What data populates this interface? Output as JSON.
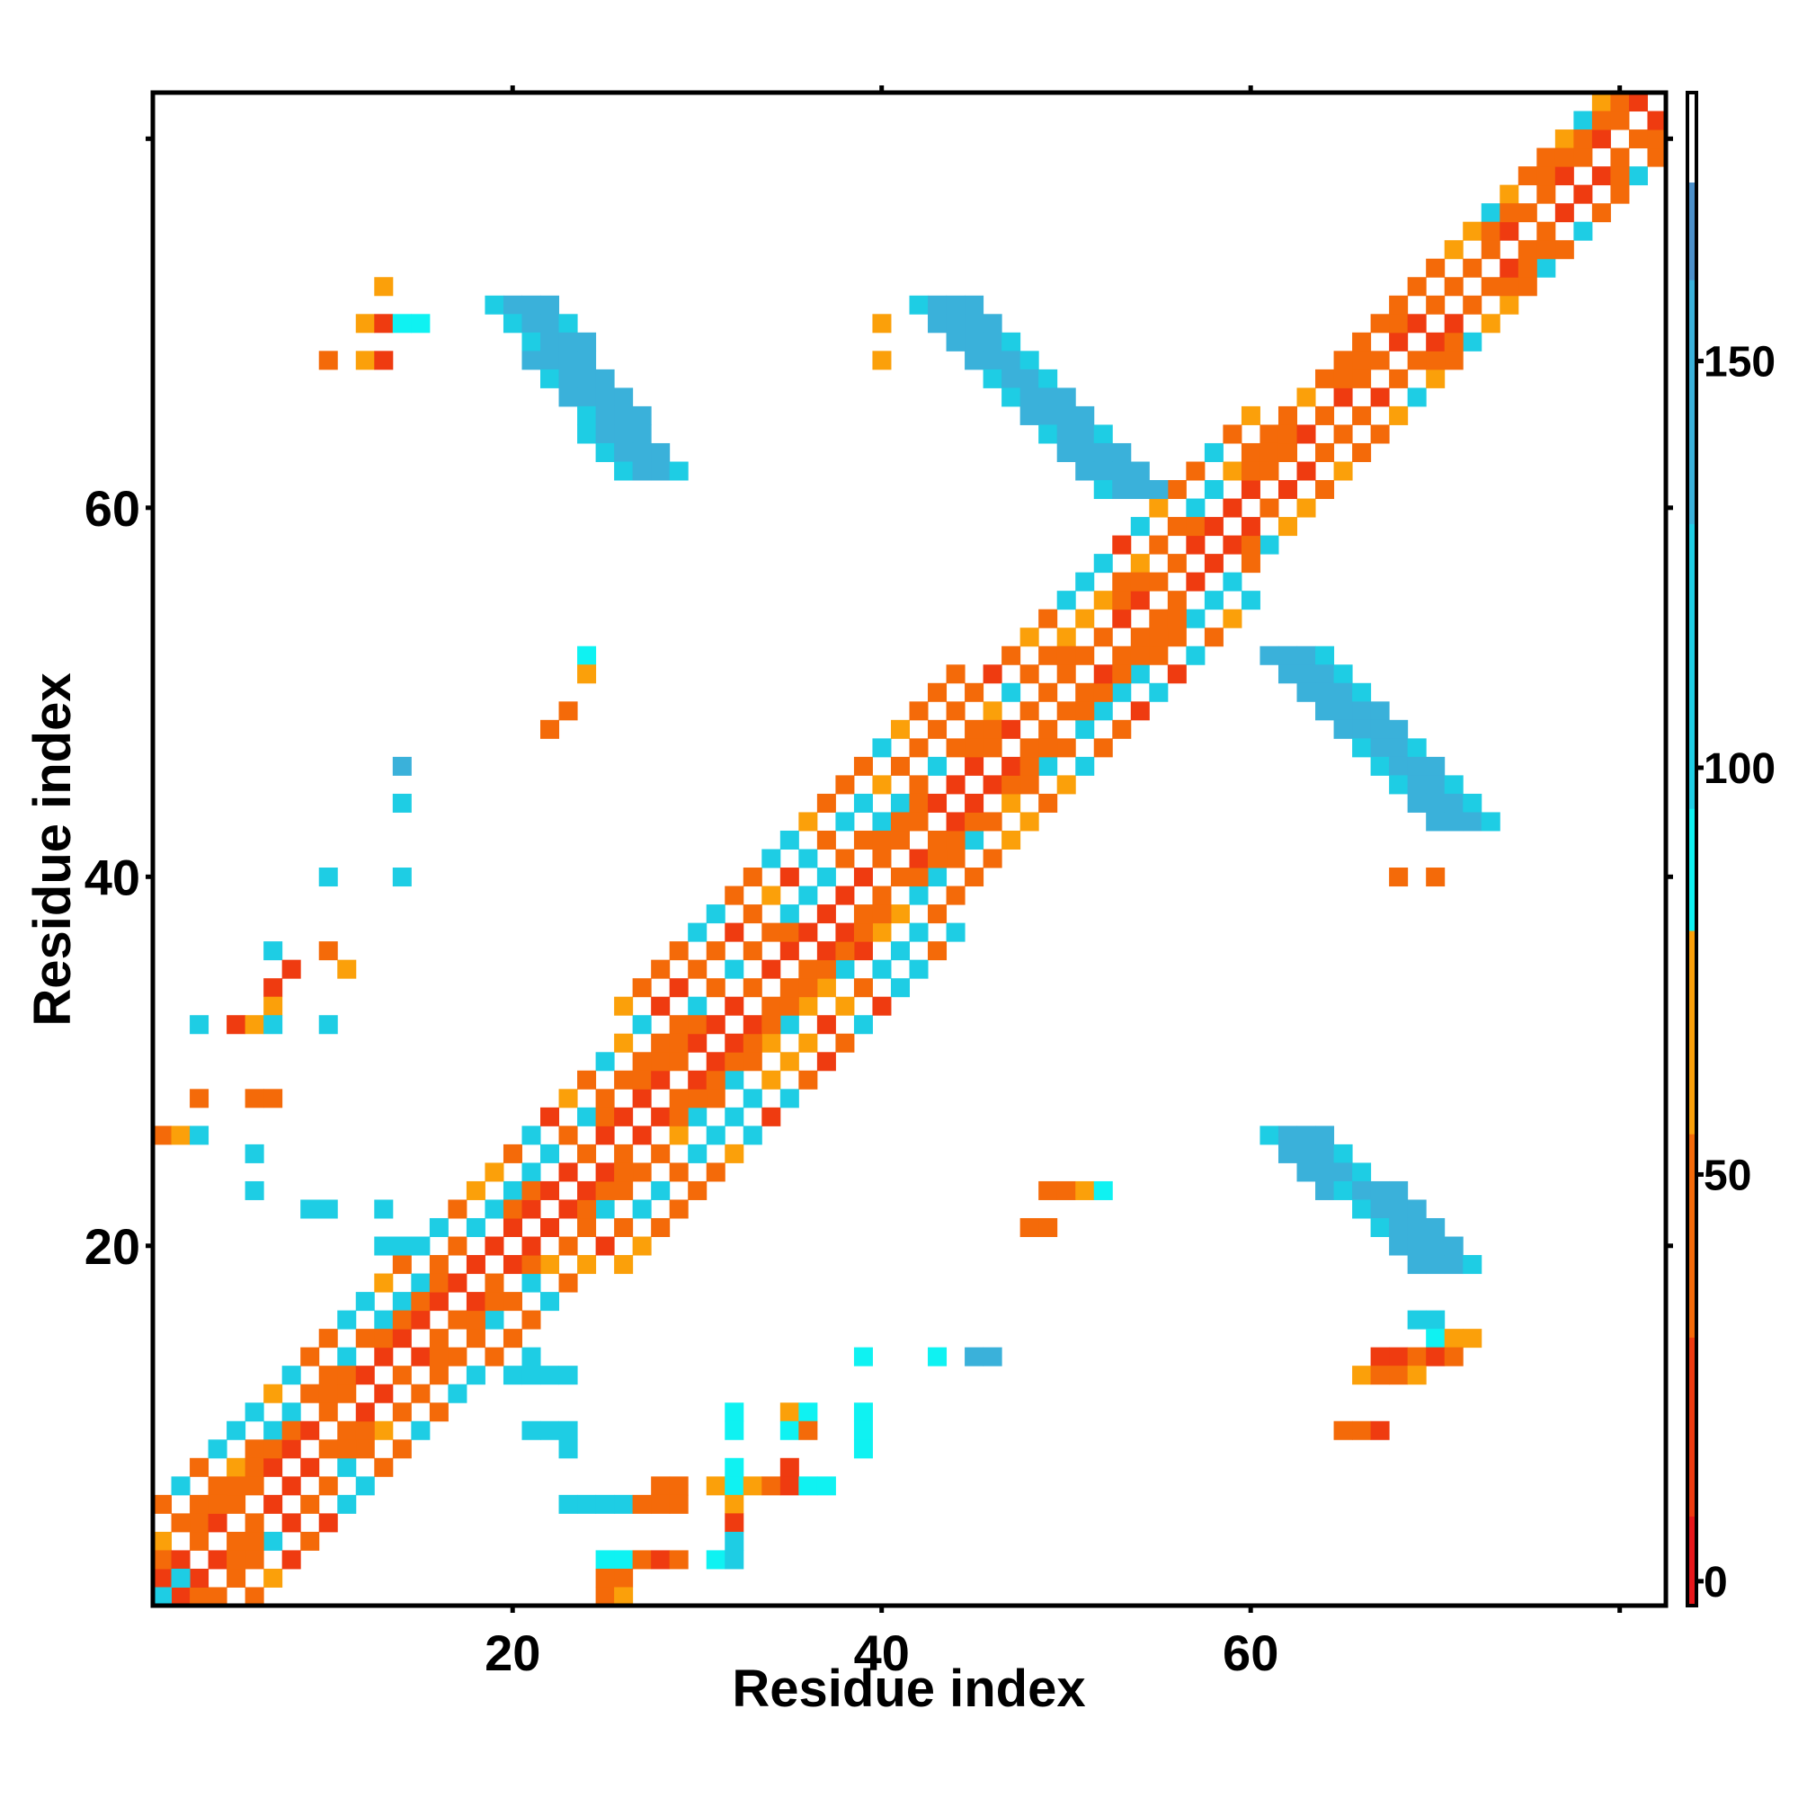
{
  "chart_data": {
    "type": "heatmap",
    "title": "",
    "xlabel": "Residue index",
    "ylabel": "Residue index",
    "xlim": [
      1,
      82
    ],
    "ylim": [
      1,
      82
    ],
    "x_ticks": [
      20,
      40,
      60
    ],
    "y_ticks": [
      20,
      40,
      60
    ],
    "x_tick_labels": [
      "20",
      "40",
      "60"
    ],
    "y_tick_labels": [
      "20",
      "40",
      "60"
    ],
    "grid": false,
    "legend": "right",
    "colorbar": {
      "range": [
        -3,
        183
      ],
      "ticks": [
        0,
        50,
        100,
        150
      ],
      "tick_labels": [
        "0",
        "50",
        "100",
        "150"
      ],
      "stops": [
        {
          "from": -3,
          "to": 8,
          "color": "#e8171b"
        },
        {
          "from": 8,
          "to": 30,
          "color": "#ef3b10"
        },
        {
          "from": 30,
          "to": 55,
          "color": "#f46a09"
        },
        {
          "from": 55,
          "to": 80,
          "color": "#fba00a"
        },
        {
          "from": 80,
          "to": 95,
          "color": "#0ff2f2"
        },
        {
          "from": 95,
          "to": 130,
          "color": "#1ecde4"
        },
        {
          "from": 130,
          "to": 160,
          "color": "#3ab1da"
        },
        {
          "from": 160,
          "to": 172,
          "color": "#4b8fc9"
        },
        {
          "from": 172,
          "to": 183,
          "color": "#ffffff"
        }
      ]
    },
    "regions": [
      {
        "name": "diagonal-band",
        "x_range": [
          1,
          82
        ],
        "y_offset_range": [
          -7,
          7
        ],
        "value_range": [
          20,
          120
        ]
      },
      {
        "name": "near-diagonal",
        "x_range": [
          1,
          82
        ],
        "y_offset_range": [
          -1,
          1
        ],
        "value_range": [
          10,
          40
        ]
      },
      {
        "name": "beta-sheet-1",
        "x_center": [
          20,
          27
        ],
        "y_center": [
          71,
          62
        ],
        "value": 155
      },
      {
        "name": "beta-sheet-2",
        "x_center": [
          43,
          53
        ],
        "y_center": [
          71,
          61
        ],
        "value": 155
      },
      {
        "name": "beta-sheet-3",
        "x_center": [
          62,
          71
        ],
        "y_center": [
          52,
          43
        ],
        "value": 155
      },
      {
        "name": "beta-sheet-4",
        "x_center": [
          62,
          70
        ],
        "y_center": [
          26,
          19
        ],
        "value": 155
      }
    ],
    "cells": [
      {
        "x": 1,
        "y": 1,
        "v": 100
      },
      {
        "x": 2,
        "y": 2,
        "v": 100
      },
      {
        "x": 13,
        "y": 72,
        "v": 60
      },
      {
        "x": 12,
        "y": 70,
        "v": 60
      },
      {
        "x": 13,
        "y": 70,
        "v": 20
      },
      {
        "x": 10,
        "y": 68,
        "v": 50
      },
      {
        "x": 12,
        "y": 68,
        "v": 60
      },
      {
        "x": 13,
        "y": 68,
        "v": 20
      },
      {
        "x": 14,
        "y": 70,
        "v": 85
      },
      {
        "x": 15,
        "y": 70,
        "v": 90
      },
      {
        "x": 40,
        "y": 70,
        "v": 70
      },
      {
        "x": 40,
        "y": 68,
        "v": 55
      },
      {
        "x": 24,
        "y": 52,
        "v": 90
      },
      {
        "x": 24,
        "y": 51,
        "v": 70
      },
      {
        "x": 23,
        "y": 49,
        "v": 50
      },
      {
        "x": 22,
        "y": 48,
        "v": 50
      },
      {
        "x": 14,
        "y": 46,
        "v": 155
      },
      {
        "x": 14,
        "y": 44,
        "v": 95
      },
      {
        "x": 10,
        "y": 40,
        "v": 95
      },
      {
        "x": 14,
        "y": 40,
        "v": 95
      },
      {
        "x": 7,
        "y": 36,
        "v": 95
      },
      {
        "x": 8,
        "y": 35,
        "v": 20
      },
      {
        "x": 7,
        "y": 34,
        "v": 20
      },
      {
        "x": 7,
        "y": 33,
        "v": 70
      },
      {
        "x": 3,
        "y": 32,
        "v": 95
      },
      {
        "x": 5,
        "y": 32,
        "v": 20
      },
      {
        "x": 6,
        "y": 32,
        "v": 55
      },
      {
        "x": 7,
        "y": 32,
        "v": 95
      },
      {
        "x": 10,
        "y": 36,
        "v": 50
      },
      {
        "x": 11,
        "y": 35,
        "v": 70
      },
      {
        "x": 10,
        "y": 32,
        "v": 95
      },
      {
        "x": 3,
        "y": 28,
        "v": 50
      },
      {
        "x": 6,
        "y": 28,
        "v": 50
      },
      {
        "x": 7,
        "y": 28,
        "v": 50
      },
      {
        "x": 1,
        "y": 26,
        "v": 50
      },
      {
        "x": 2,
        "y": 26,
        "v": 70
      },
      {
        "x": 3,
        "y": 26,
        "v": 95
      },
      {
        "x": 6,
        "y": 25,
        "v": 95
      },
      {
        "x": 6,
        "y": 23,
        "v": 95
      },
      {
        "x": 9,
        "y": 22,
        "v": 95
      },
      {
        "x": 10,
        "y": 22,
        "v": 95
      },
      {
        "x": 13,
        "y": 22,
        "v": 95
      },
      {
        "x": 13,
        "y": 20,
        "v": 95
      },
      {
        "x": 14,
        "y": 20,
        "v": 100
      },
      {
        "x": 49,
        "y": 23,
        "v": 50
      },
      {
        "x": 50,
        "y": 23,
        "v": 50
      },
      {
        "x": 51,
        "y": 23,
        "v": 70
      },
      {
        "x": 52,
        "y": 23,
        "v": 90
      },
      {
        "x": 48,
        "y": 21,
        "v": 50
      },
      {
        "x": 49,
        "y": 21,
        "v": 50
      },
      {
        "x": 68,
        "y": 40,
        "v": 50
      },
      {
        "x": 70,
        "y": 40,
        "v": 50
      },
      {
        "x": 69,
        "y": 16,
        "v": 95
      },
      {
        "x": 70,
        "y": 16,
        "v": 95
      },
      {
        "x": 70,
        "y": 15,
        "v": 90
      },
      {
        "x": 71,
        "y": 15,
        "v": 70
      },
      {
        "x": 72,
        "y": 15,
        "v": 60
      },
      {
        "x": 67,
        "y": 14,
        "v": 20
      },
      {
        "x": 68,
        "y": 14,
        "v": 20
      },
      {
        "x": 69,
        "y": 14,
        "v": 50
      },
      {
        "x": 70,
        "y": 14,
        "v": 20
      },
      {
        "x": 71,
        "y": 14,
        "v": 50
      },
      {
        "x": 66,
        "y": 13,
        "v": 60
      },
      {
        "x": 67,
        "y": 13,
        "v": 50
      },
      {
        "x": 68,
        "y": 13,
        "v": 50
      },
      {
        "x": 69,
        "y": 13,
        "v": 70
      },
      {
        "x": 65,
        "y": 10,
        "v": 50
      },
      {
        "x": 66,
        "y": 10,
        "v": 50
      },
      {
        "x": 67,
        "y": 10,
        "v": 20
      },
      {
        "x": 21,
        "y": 14,
        "v": 95
      },
      {
        "x": 20,
        "y": 13,
        "v": 95
      },
      {
        "x": 21,
        "y": 13,
        "v": 95
      },
      {
        "x": 22,
        "y": 13,
        "v": 95
      },
      {
        "x": 23,
        "y": 13,
        "v": 95
      },
      {
        "x": 21,
        "y": 10,
        "v": 95
      },
      {
        "x": 22,
        "y": 10,
        "v": 95
      },
      {
        "x": 23,
        "y": 10,
        "v": 95
      },
      {
        "x": 23,
        "y": 9,
        "v": 95
      },
      {
        "x": 39,
        "y": 14,
        "v": 90
      },
      {
        "x": 43,
        "y": 14,
        "v": 90
      },
      {
        "x": 45,
        "y": 14,
        "v": 155
      },
      {
        "x": 46,
        "y": 14,
        "v": 155
      },
      {
        "x": 32,
        "y": 11,
        "v": 90
      },
      {
        "x": 32,
        "y": 10,
        "v": 90
      },
      {
        "x": 35,
        "y": 11,
        "v": 70
      },
      {
        "x": 36,
        "y": 11,
        "v": 90
      },
      {
        "x": 35,
        "y": 10,
        "v": 90
      },
      {
        "x": 36,
        "y": 10,
        "v": 50
      },
      {
        "x": 39,
        "y": 11,
        "v": 90
      },
      {
        "x": 39,
        "y": 10,
        "v": 90
      },
      {
        "x": 39,
        "y": 9,
        "v": 90
      },
      {
        "x": 32,
        "y": 8,
        "v": 90
      },
      {
        "x": 35,
        "y": 8,
        "v": 20
      },
      {
        "x": 28,
        "y": 7,
        "v": 50
      },
      {
        "x": 29,
        "y": 7,
        "v": 50
      },
      {
        "x": 31,
        "y": 7,
        "v": 60
      },
      {
        "x": 32,
        "y": 7,
        "v": 90
      },
      {
        "x": 33,
        "y": 7,
        "v": 60
      },
      {
        "x": 34,
        "y": 7,
        "v": 50
      },
      {
        "x": 35,
        "y": 7,
        "v": 20
      },
      {
        "x": 36,
        "y": 7,
        "v": 90
      },
      {
        "x": 37,
        "y": 7,
        "v": 90
      },
      {
        "x": 23,
        "y": 6,
        "v": 95
      },
      {
        "x": 24,
        "y": 6,
        "v": 95
      },
      {
        "x": 25,
        "y": 6,
        "v": 95
      },
      {
        "x": 26,
        "y": 6,
        "v": 95
      },
      {
        "x": 27,
        "y": 6,
        "v": 50
      },
      {
        "x": 28,
        "y": 6,
        "v": 50
      },
      {
        "x": 29,
        "y": 6,
        "v": 50
      },
      {
        "x": 32,
        "y": 6,
        "v": 70
      },
      {
        "x": 32,
        "y": 5,
        "v": 20
      },
      {
        "x": 32,
        "y": 4,
        "v": 95
      },
      {
        "x": 25,
        "y": 3,
        "v": 90
      },
      {
        "x": 26,
        "y": 3,
        "v": 90
      },
      {
        "x": 27,
        "y": 3,
        "v": 50
      },
      {
        "x": 28,
        "y": 3,
        "v": 20
      },
      {
        "x": 29,
        "y": 3,
        "v": 50
      },
      {
        "x": 31,
        "y": 3,
        "v": 90
      },
      {
        "x": 32,
        "y": 3,
        "v": 95
      },
      {
        "x": 25,
        "y": 2,
        "v": 50
      },
      {
        "x": 26,
        "y": 2,
        "v": 50
      },
      {
        "x": 25,
        "y": 1,
        "v": 50
      },
      {
        "x": 26,
        "y": 1,
        "v": 70
      }
    ]
  }
}
